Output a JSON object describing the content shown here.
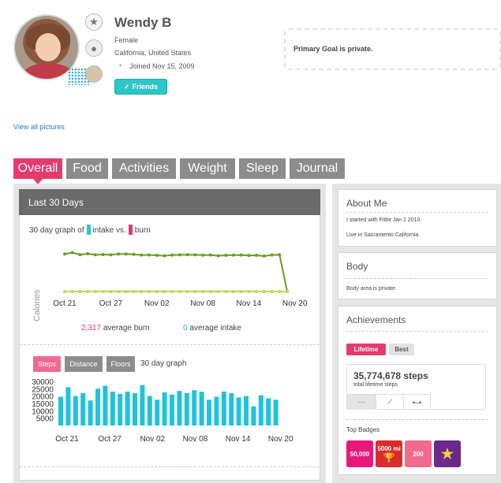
{
  "profile": {
    "name": "Wendy B",
    "gender": "Female",
    "location": "California, United States",
    "joined": "Joined Nov 15, 2009",
    "friends_label": "Friends",
    "view_all_pictures": "View all pictures",
    "primary_goal": "Primary Goal is private."
  },
  "tabs": [
    {
      "label": "Overall",
      "active": true
    },
    {
      "label": "Food",
      "active": false
    },
    {
      "label": "Activities",
      "active": false
    },
    {
      "label": "Weight",
      "active": false
    },
    {
      "label": "Sleep",
      "active": false
    },
    {
      "label": "Journal",
      "active": false
    }
  ],
  "summary": {
    "header": "Last 30 Days",
    "graph_prefix": "30 day graph of",
    "intake_label": "intake vs.",
    "burn_label": "burn",
    "burn_value": "2,317",
    "burn_suffix": "average burn",
    "intake_value": "0",
    "intake_suffix": "average intake",
    "colors": {
      "intake": "#2cc7c7",
      "burn": "#e63a6e",
      "line": "#6a9a2a",
      "flat": "#b8d85a",
      "bars": "#1fc3de"
    }
  },
  "chart_data": [
    {
      "type": "line",
      "ylabel": "Calories",
      "x_tick_labels": [
        "Oct 21",
        "Oct 27",
        "Nov 02",
        "Nov 08",
        "Nov 14",
        "Nov 20"
      ],
      "series": [
        {
          "name": "burn",
          "values": [
            2380,
            2470,
            2340,
            2400,
            2330,
            2350,
            2330,
            2380,
            2380,
            2360,
            2320,
            2320,
            2300,
            2270,
            2310,
            2330,
            2340,
            2330,
            2310,
            2320,
            2270,
            2300,
            2310,
            2320,
            2290,
            2300,
            2250,
            2320,
            2340,
            0
          ]
        },
        {
          "name": "intake",
          "values": [
            0,
            0,
            0,
            0,
            0,
            0,
            0,
            0,
            0,
            0,
            0,
            0,
            0,
            0,
            0,
            0,
            0,
            0,
            0,
            0,
            0,
            0,
            0,
            0,
            0,
            0,
            0,
            0,
            0,
            0
          ]
        }
      ]
    },
    {
      "type": "bar",
      "title": "30 day graph",
      "y_tick_labels": [
        "30000",
        "25000",
        "20000",
        "15000",
        "10000",
        "5000"
      ],
      "ylim": [
        0,
        30000
      ],
      "x_tick_labels": [
        "Oct 21",
        "Oct 27",
        "Nov 02",
        "Nov 08",
        "Nov 14",
        "Nov 20"
      ],
      "values": [
        19500,
        26000,
        20000,
        22000,
        17000,
        25000,
        27000,
        23000,
        21500,
        23000,
        22000,
        27500,
        20000,
        17500,
        22500,
        21000,
        23500,
        22000,
        24000,
        23000,
        17500,
        19500,
        23000,
        22000,
        19000,
        20000,
        13000,
        20500,
        18500,
        17500
      ]
    }
  ],
  "step_tabs": [
    {
      "label": "Steps",
      "active": true
    },
    {
      "label": "Distance",
      "active": false
    },
    {
      "label": "Floors",
      "active": false
    }
  ],
  "about": {
    "title": "About Me",
    "line1": "I started with Fitbit Jan 1 2010.",
    "line2": "Live in Sacramento California."
  },
  "body": {
    "title": "Body",
    "text": "Body area is private."
  },
  "achievements": {
    "title": "Achievements",
    "lifetime_label": "Lifetime",
    "best_label": "Best",
    "steps": "35,774,678 steps",
    "steps_caption": "total lifetime steps",
    "top_badges": "Top Badges",
    "badges": [
      {
        "label": "50,000",
        "icon": "steps-badge-icon",
        "color": "#e8197a"
      },
      {
        "label": "5000 mi",
        "icon": "trophy-badge-icon",
        "color": "#d92b2b"
      },
      {
        "label": "200",
        "icon": "floors-badge-icon",
        "color": "#f06b8e"
      },
      {
        "label": "",
        "icon": "star-badge-icon",
        "color": "#6b2a8a"
      }
    ]
  }
}
